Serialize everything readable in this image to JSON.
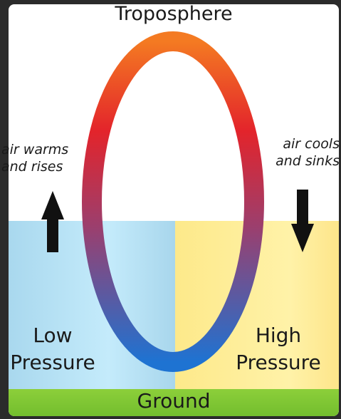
{
  "title": "Troposphere",
  "left_note": {
    "line1": "air warms",
    "line2": "and rises"
  },
  "right_note": {
    "line1": "air cools",
    "line2": "and sinks"
  },
  "low_zone": {
    "line1": "Low",
    "line2": "Pressure"
  },
  "high_zone": {
    "line1": "High",
    "line2": "Pressure"
  },
  "ground": "Ground",
  "colors": {
    "loop_top": "#f47a22",
    "loop_upper": "#e3242b",
    "loop_middle": "#9b3f6e",
    "loop_bottom": "#1e73d2",
    "low_zone": "#b7e2f5",
    "high_zone": "#fdec93",
    "ground": "#7cc432",
    "arrow": "#111111"
  },
  "icons": {
    "rising_arrow": "arrow-up-icon",
    "sinking_arrow": "arrow-down-icon"
  }
}
